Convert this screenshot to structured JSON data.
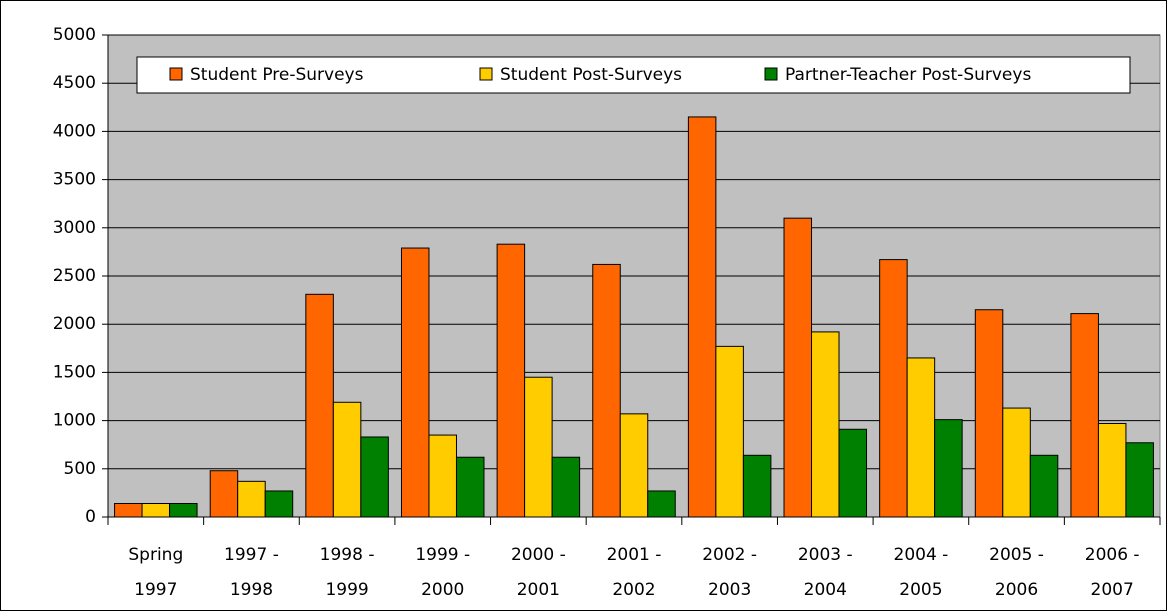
{
  "chart_data": {
    "type": "bar",
    "categories": [
      [
        "Spring",
        "1997"
      ],
      [
        "1997 -",
        "1998"
      ],
      [
        "1998 -",
        "1999"
      ],
      [
        "1999 -",
        "2000"
      ],
      [
        "2000 -",
        "2001"
      ],
      [
        "2001 -",
        "2002"
      ],
      [
        "2002 -",
        "2003"
      ],
      [
        "2003 -",
        "2004"
      ],
      [
        "2004 -",
        "2005"
      ],
      [
        "2005 -",
        "2006"
      ],
      [
        "2006 -",
        "2007"
      ]
    ],
    "series": [
      {
        "name": "Student Pre-Surveys",
        "color": "#ff6600",
        "values": [
          140,
          480,
          2310,
          2790,
          2830,
          2620,
          4150,
          3100,
          2670,
          2150,
          2110
        ]
      },
      {
        "name": "Student Post-Surveys",
        "color": "#ffcc00",
        "values": [
          140,
          370,
          1190,
          850,
          1450,
          1070,
          1770,
          1920,
          1650,
          1130,
          970
        ]
      },
      {
        "name": "Partner-Teacher Post-Surveys",
        "color": "#008000",
        "values": [
          140,
          270,
          830,
          620,
          620,
          270,
          640,
          910,
          1010,
          640,
          770
        ]
      }
    ],
    "ylim": [
      0,
      5000
    ],
    "yticks": [
      0,
      500,
      1000,
      1500,
      2000,
      2500,
      3000,
      3500,
      4000,
      4500,
      5000
    ],
    "grid": true,
    "legend": "top"
  }
}
